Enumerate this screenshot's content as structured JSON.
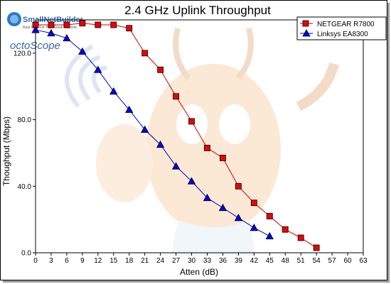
{
  "chart_data": {
    "type": "line",
    "title": "2.4 GHz Uplink Throughput",
    "xlabel": "Atten (dB)",
    "ylabel": "Thoughput (Mbps)",
    "xlim": [
      0,
      63
    ],
    "ylim": [
      0,
      140
    ],
    "x_ticks": [
      "0",
      "3",
      "6",
      "9",
      "12",
      "15",
      "18",
      "21",
      "24",
      "27",
      "30",
      "33",
      "36",
      "39",
      "42",
      "45",
      "48",
      "51",
      "54",
      "57",
      "60",
      "63"
    ],
    "y_ticks": [
      "0.0",
      "40.0",
      "80.0",
      "120.0"
    ],
    "grid": false,
    "legend_position": "top-right",
    "series": [
      {
        "name": "NETGEAR R7800",
        "color": "#cc0000",
        "marker": "square",
        "x": [
          0,
          3,
          6,
          9,
          12,
          15,
          18,
          21,
          24,
          27,
          30,
          33,
          36,
          39,
          42,
          45,
          48,
          51,
          54
        ],
        "values": [
          137,
          137,
          137,
          138,
          137,
          137,
          135,
          120,
          110,
          94,
          79,
          63,
          57,
          40,
          30,
          22,
          14,
          9,
          3
        ]
      },
      {
        "name": "Linksys EA8300",
        "color": "#0000cc",
        "marker": "triangle",
        "x": [
          0,
          3,
          6,
          9,
          12,
          15,
          18,
          21,
          24,
          27,
          30,
          33,
          36,
          39,
          42,
          45
        ],
        "values": [
          134,
          132,
          129,
          121,
          110,
          97,
          86,
          74,
          65,
          52,
          43,
          33,
          27,
          21,
          15,
          10
        ]
      }
    ]
  },
  "branding": {
    "logo1_text": "SmallNetBuilder",
    "logo1_tagline": "Real Help For Your Small Network",
    "logo2_text": "octoScope"
  }
}
